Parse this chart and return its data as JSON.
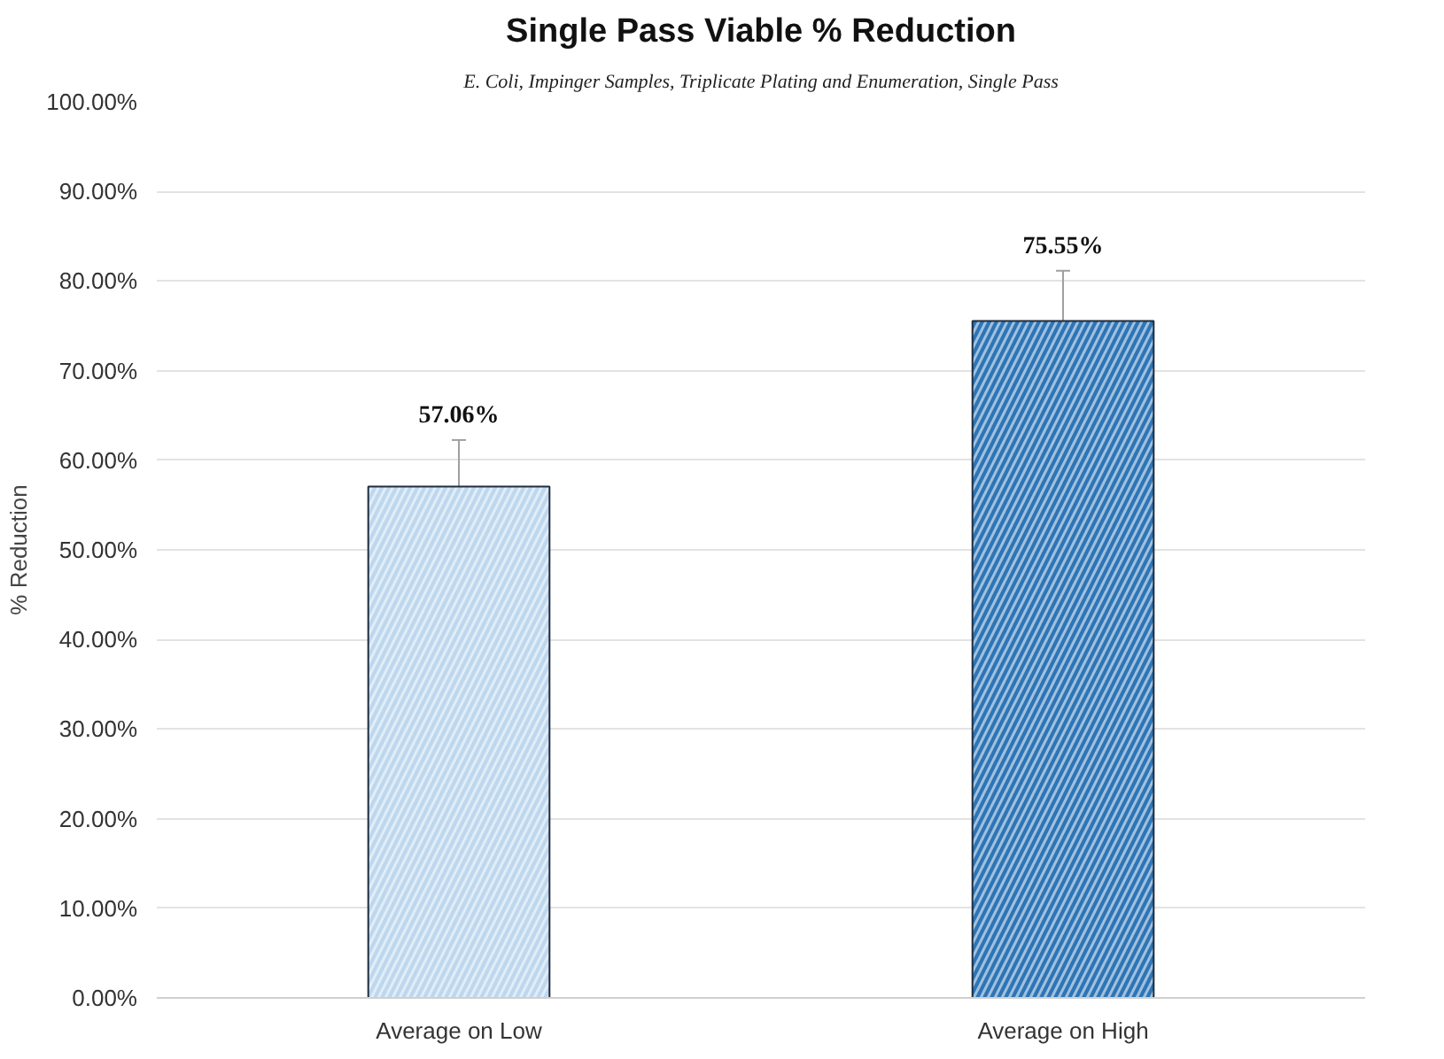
{
  "chart_data": {
    "type": "bar",
    "title": "Single Pass Viable % Reduction",
    "subtitle": "E. Coli, Impinger Samples, Triplicate Plating and Enumeration, Single Pass",
    "ylabel": "% Reduction",
    "categories": [
      "Average on Low",
      "Average on High"
    ],
    "values": [
      57.06,
      75.55
    ],
    "colors": [
      "#bdd7ee",
      "#2e75b6"
    ],
    "errors": [
      5.2,
      5.6
    ],
    "value_labels": [
      "57.06%",
      "75.55%"
    ],
    "ylim": [
      0,
      100
    ],
    "yticks": [
      {
        "value": 0,
        "label": "0.00%"
      },
      {
        "value": 10,
        "label": "10.00%"
      },
      {
        "value": 20,
        "label": "20.00%"
      },
      {
        "value": 30,
        "label": "30.00%"
      },
      {
        "value": 40,
        "label": "40.00%"
      },
      {
        "value": 50,
        "label": "50.00%"
      },
      {
        "value": 60,
        "label": "60.00%"
      },
      {
        "value": 70,
        "label": "70.00%"
      },
      {
        "value": 80,
        "label": "80.00%"
      },
      {
        "value": 90,
        "label": "90.00%"
      },
      {
        "value": 100,
        "label": "100.00%"
      }
    ],
    "grid": "y"
  }
}
